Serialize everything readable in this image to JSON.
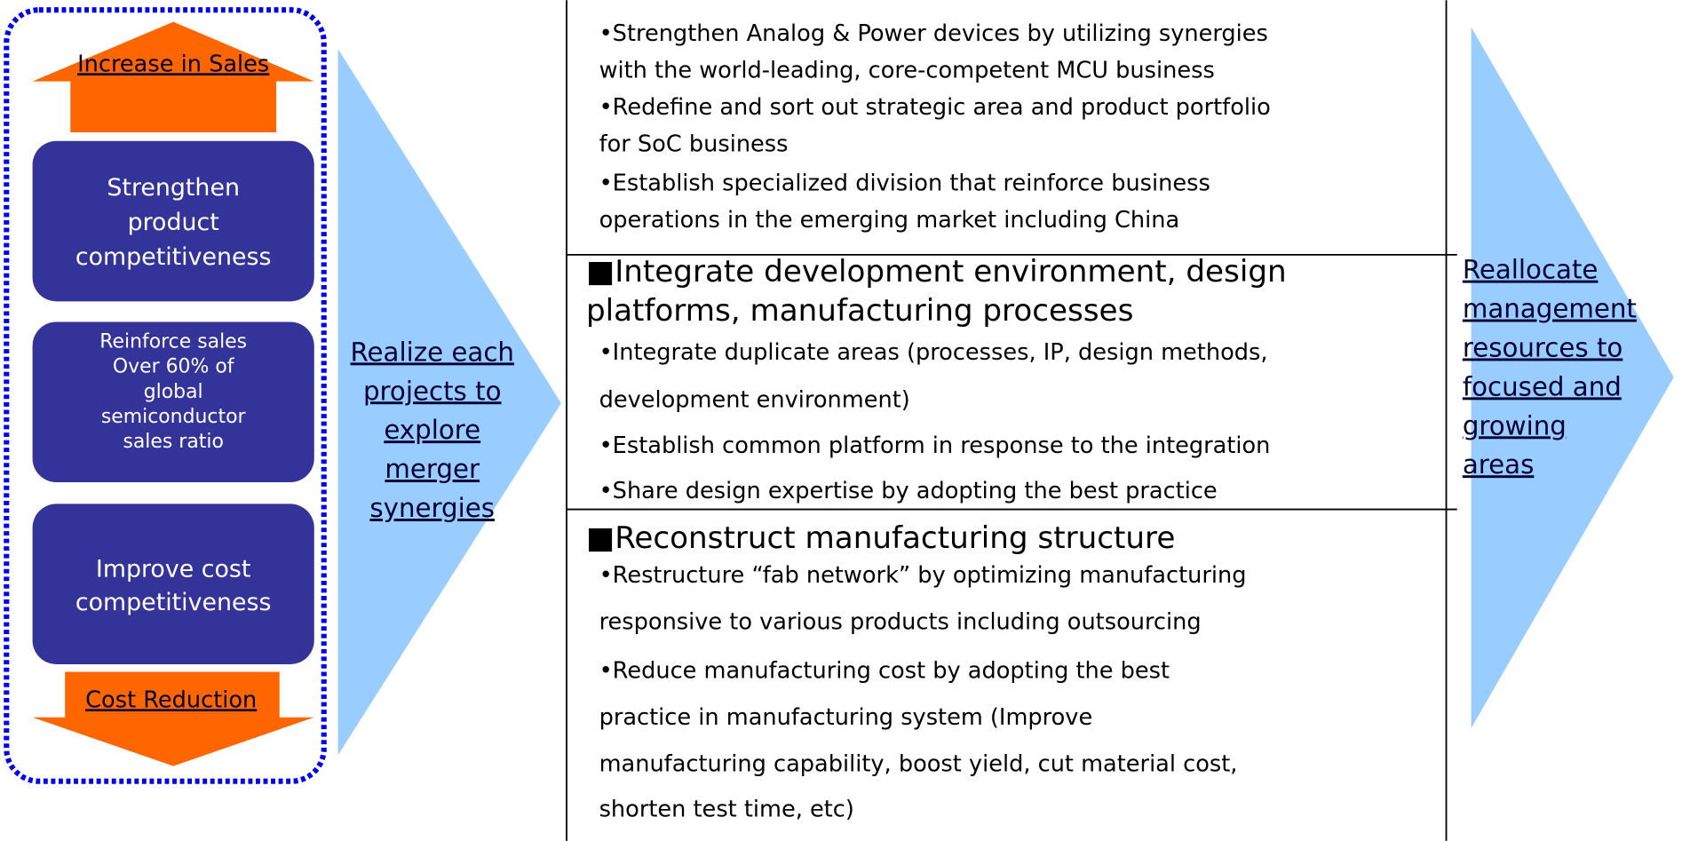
{
  "left": {
    "top_arrow": "Increase in Sales",
    "boxes": [
      {
        "lines": [
          "Strengthen",
          "product",
          "competitiveness"
        ]
      },
      {
        "lines": [
          "Reinforce sales",
          "Over 60% of",
          "global",
          "semiconductor",
          "sales ratio"
        ]
      },
      {
        "lines": [
          "Improve cost",
          "competitiveness"
        ]
      }
    ],
    "bottom_arrow": "Cost Reduction"
  },
  "middle_arrow": {
    "lines": [
      "Realize each",
      "projects to",
      "explore",
      "merger",
      "synergies"
    ]
  },
  "sections": [
    {
      "heading": [],
      "lines": [
        "•Strengthen Analog & Power devices by utilizing synergies",
        "with the world-leading, core-competent MCU business",
        "•Redefine and sort out strategic area and product portfolio",
        "for SoC business",
        "•Establish specialized division that reinforce business",
        "operations in the emerging market including China"
      ]
    },
    {
      "heading": [
        "■Integrate development environment, design",
        "platforms, manufacturing processes"
      ],
      "lines": [
        "•Integrate duplicate areas (processes, IP, design methods,",
        "development environment)",
        "•Establish common platform in response to the integration",
        "•Share design expertise by adopting the best practice"
      ]
    },
    {
      "heading": [
        "■Reconstruct manufacturing structure"
      ],
      "lines": [
        "•Restructure “fab network” by optimizing manufacturing",
        "responsive to various products including outsourcing",
        "•Reduce manufacturing cost by adopting the best",
        "practice in manufacturing system (Improve",
        "manufacturing capability, boost yield, cut material cost,",
        "shorten test time, etc)"
      ]
    }
  ],
  "right_arrow": {
    "lines": [
      "Reallocate",
      "management",
      "resources to",
      "focused and",
      "growing",
      "areas"
    ]
  }
}
